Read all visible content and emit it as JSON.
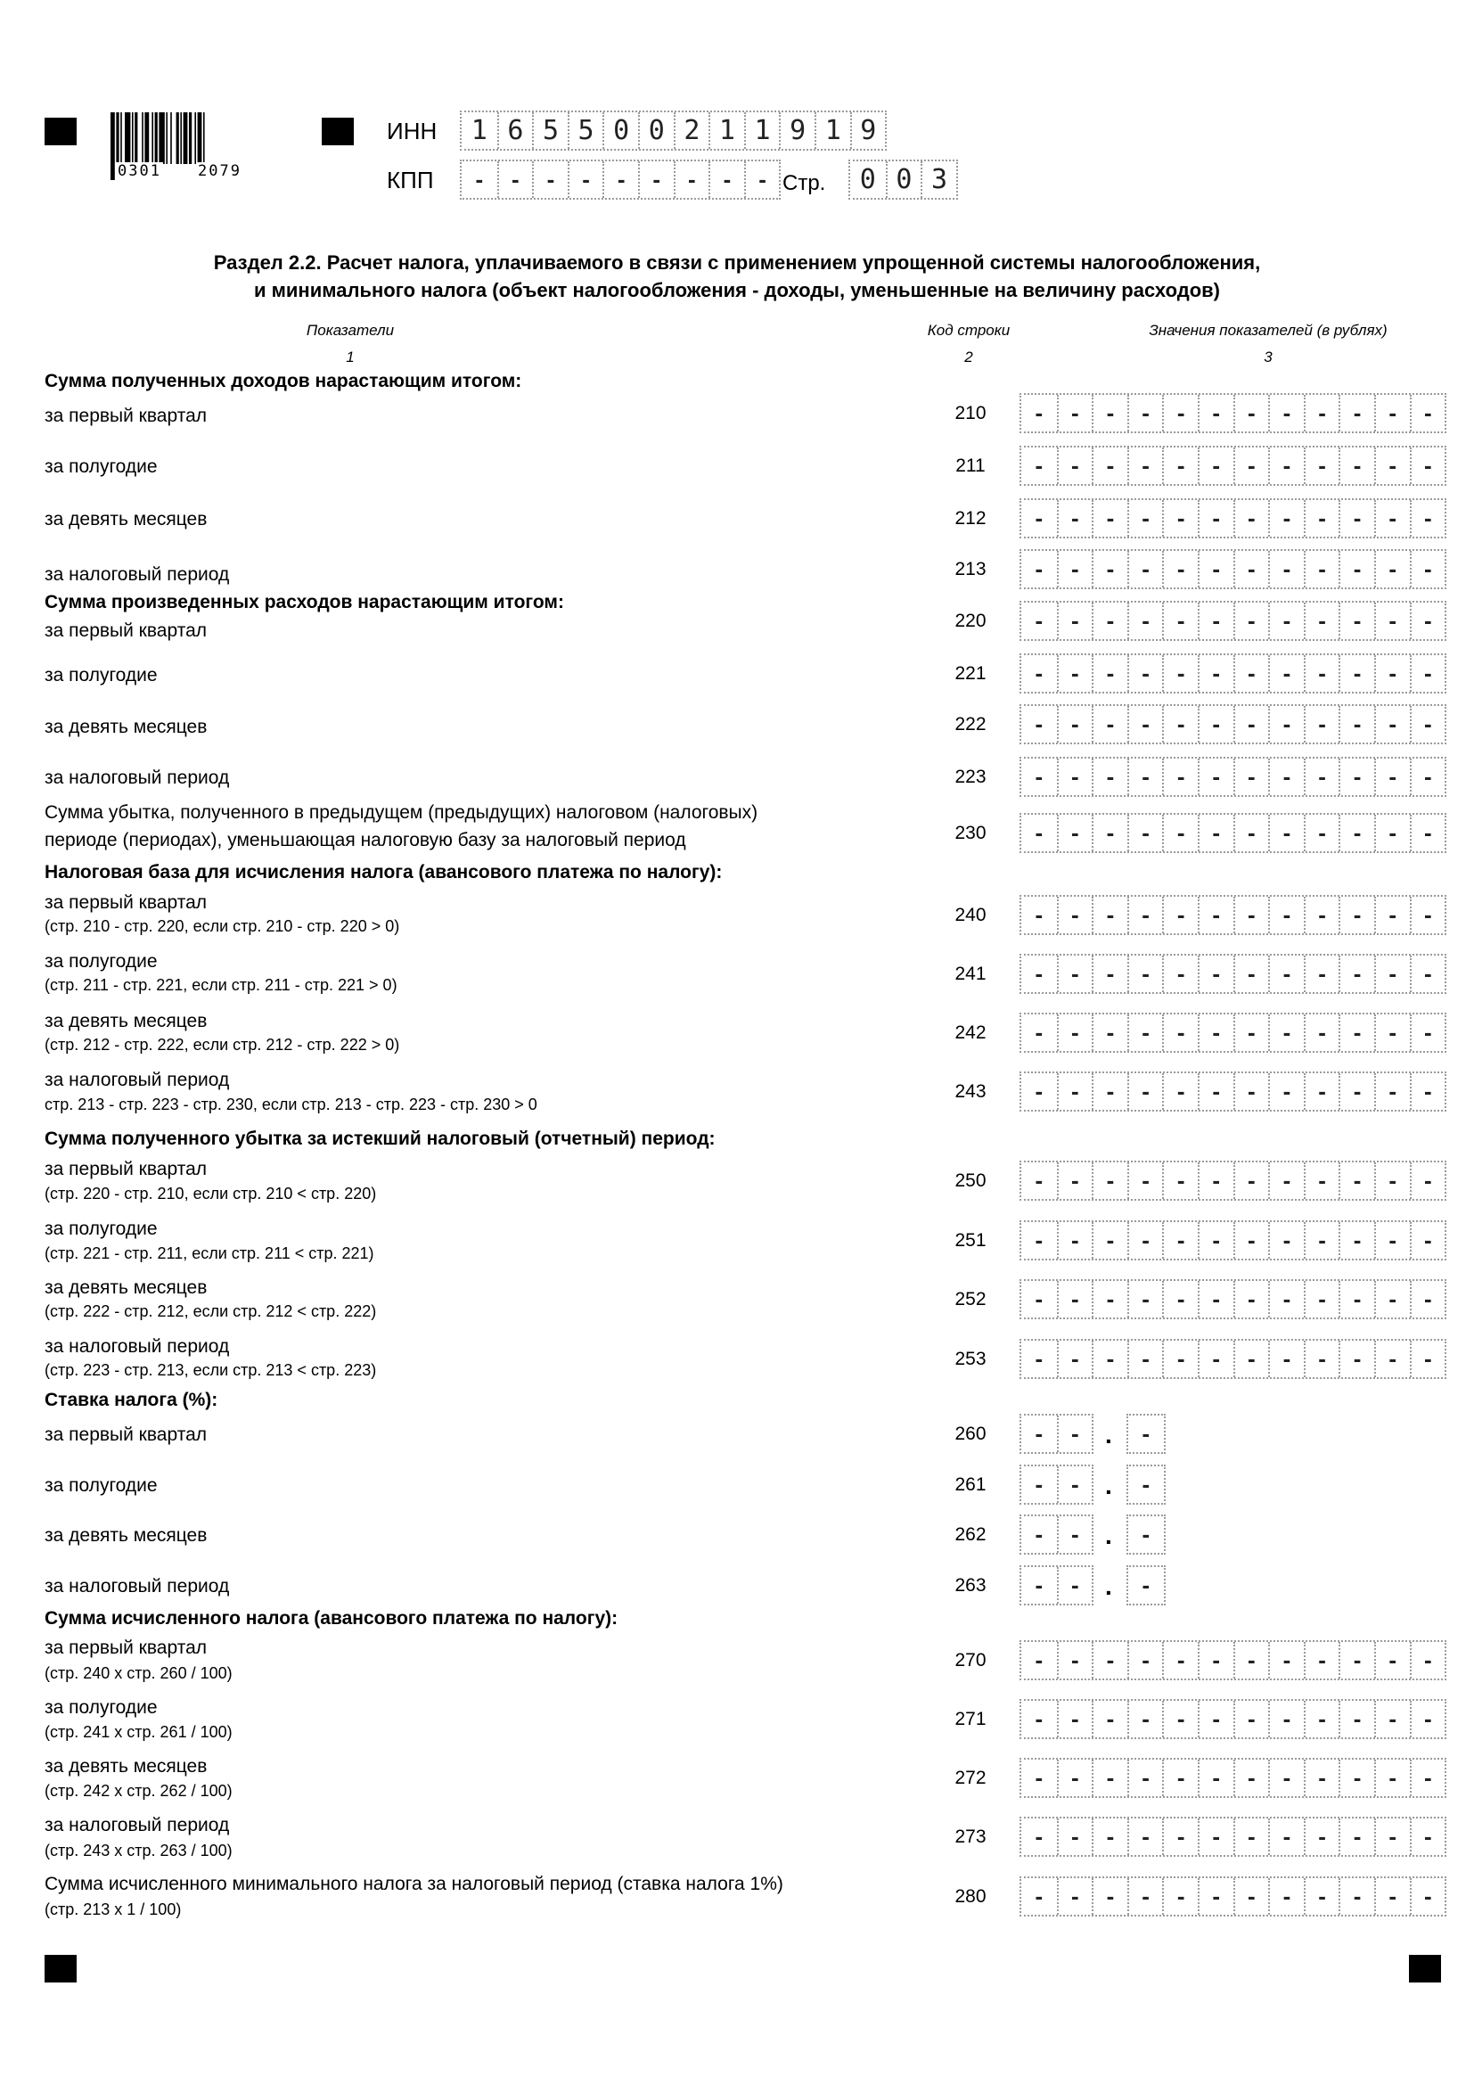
{
  "barcode": {
    "digits_left": "0301",
    "digits_right": "2079"
  },
  "header": {
    "inn_label": "ИНН",
    "inn_value": "165500211919",
    "kpp_label": "КПП",
    "kpp_value": "---------",
    "page_label": "Стр.",
    "page_value": "003"
  },
  "title": {
    "line1": "Раздел 2.2. Расчет налога, уплачиваемого в связи с применением упрощенной системы налогообложения,",
    "line2": "и минимального налога (объект налогообложения - доходы, уменьшенные на величину расходов)"
  },
  "columns": [
    {
      "label": "Показатели",
      "num": "1"
    },
    {
      "label": "Код строки",
      "num": "2"
    },
    {
      "label": "Значения показателей (в рублях)",
      "num": "3"
    }
  ],
  "items": [
    {
      "type": "heading",
      "label": "Сумма полученных доходов нарастающим итогом:"
    },
    {
      "type": "row",
      "label": "за первый квартал",
      "code": "210",
      "value": "------------"
    },
    {
      "type": "row",
      "label": "за полугодие",
      "code": "211",
      "value": "------------"
    },
    {
      "type": "row",
      "label": "за девять месяцев",
      "code": "212",
      "value": "------------"
    },
    {
      "type": "row",
      "label": "за налоговый период",
      "code": "213",
      "value": "------------"
    },
    {
      "type": "heading",
      "label": "Сумма произведенных расходов нарастающим итогом:"
    },
    {
      "type": "row",
      "label": "за первый квартал",
      "code": "220",
      "value": "------------"
    },
    {
      "type": "row",
      "label": "за полугодие",
      "code": "221",
      "value": "------------"
    },
    {
      "type": "row",
      "label": "за девять месяцев",
      "code": "222",
      "value": "------------"
    },
    {
      "type": "row",
      "label": "за налоговый период",
      "code": "223",
      "value": "------------"
    },
    {
      "type": "row",
      "label": "Сумма убытка, полученного в предыдущем (предыдущих) налоговом (налоговых)",
      "label2": "периоде (периодах), уменьшающая налоговую базу за налоговый период",
      "code": "230",
      "value": "------------"
    },
    {
      "type": "heading",
      "label": "Налоговая база для исчисления налога (авансового платежа по налогу):"
    },
    {
      "type": "row",
      "label": "за первый квартал",
      "sub": "(стр. 210 - стр. 220, если стр. 210 - стр. 220 > 0)",
      "code": "240",
      "value": "------------"
    },
    {
      "type": "row",
      "label": "за полугодие",
      "sub": "(стр. 211 - стр. 221, если стр. 211 - стр. 221 > 0)",
      "code": "241",
      "value": "------------"
    },
    {
      "type": "row",
      "label": "за девять месяцев",
      "sub": "(стр. 212 - стр. 222, если стр. 212 - стр. 222 > 0)",
      "code": "242",
      "value": "------------"
    },
    {
      "type": "row",
      "label": "за налоговый период",
      "sub": "стр. 213 - стр. 223 - стр. 230, если стр. 213 - стр. 223 - стр. 230 > 0",
      "code": "243",
      "value": "------------"
    },
    {
      "type": "heading",
      "label": "Сумма полученного убытка за истекший налоговый (отчетный) период:"
    },
    {
      "type": "row",
      "label": "за первый квартал",
      "sub": "(стр. 220 - стр. 210, если стр. 210 < стр. 220)",
      "code": "250",
      "value": "------------"
    },
    {
      "type": "row",
      "label": "за полугодие",
      "sub": "(стр. 221 - стр. 211, если стр. 211 < стр. 221)",
      "code": "251",
      "value": "------------"
    },
    {
      "type": "row",
      "label": "за девять месяцев",
      "sub": "(стр. 222 - стр. 212, если стр. 212 < стр. 222)",
      "code": "252",
      "value": "------------"
    },
    {
      "type": "row",
      "label": "за налоговый период",
      "sub": "(стр. 223 - стр. 213, если стр. 213 < стр. 223)",
      "code": "253",
      "value": "------------"
    },
    {
      "type": "heading",
      "label": "Ставка налога (%):"
    },
    {
      "type": "rate",
      "label": "за первый квартал",
      "code": "260",
      "value": "--",
      "decimal": "-",
      "separator": "."
    },
    {
      "type": "rate",
      "label": "за полугодие",
      "code": "261",
      "value": "--",
      "decimal": "-",
      "separator": "."
    },
    {
      "type": "rate",
      "label": "за девять месяцев",
      "code": "262",
      "value": "--",
      "decimal": "-",
      "separator": "."
    },
    {
      "type": "rate",
      "label": "за налоговый период",
      "code": "263",
      "value": "--",
      "decimal": "-",
      "separator": "."
    },
    {
      "type": "heading",
      "label": "Сумма исчисленного налога (авансового платежа по налогу):"
    },
    {
      "type": "row",
      "label": "за первый квартал",
      "sub": "(стр. 240 x стр. 260 / 100)",
      "code": "270",
      "value": "------------"
    },
    {
      "type": "row",
      "label": "за полугодие",
      "sub": "(стр. 241 x стр. 261 / 100)",
      "code": "271",
      "value": "------------"
    },
    {
      "type": "row",
      "label": "за девять месяцев",
      "sub": "(стр. 242 x стр. 262 / 100)",
      "code": "272",
      "value": "------------"
    },
    {
      "type": "row",
      "label": "за налоговый период",
      "sub": "(стр. 243 x стр. 263 / 100)",
      "code": "273",
      "value": "------------"
    },
    {
      "type": "row",
      "label": "Сумма исчисленного минимального налога за налоговый период (ставка налога 1%)",
      "sub": "(стр. 213 x 1 / 100)",
      "code": "280",
      "value": "------------"
    }
  ]
}
